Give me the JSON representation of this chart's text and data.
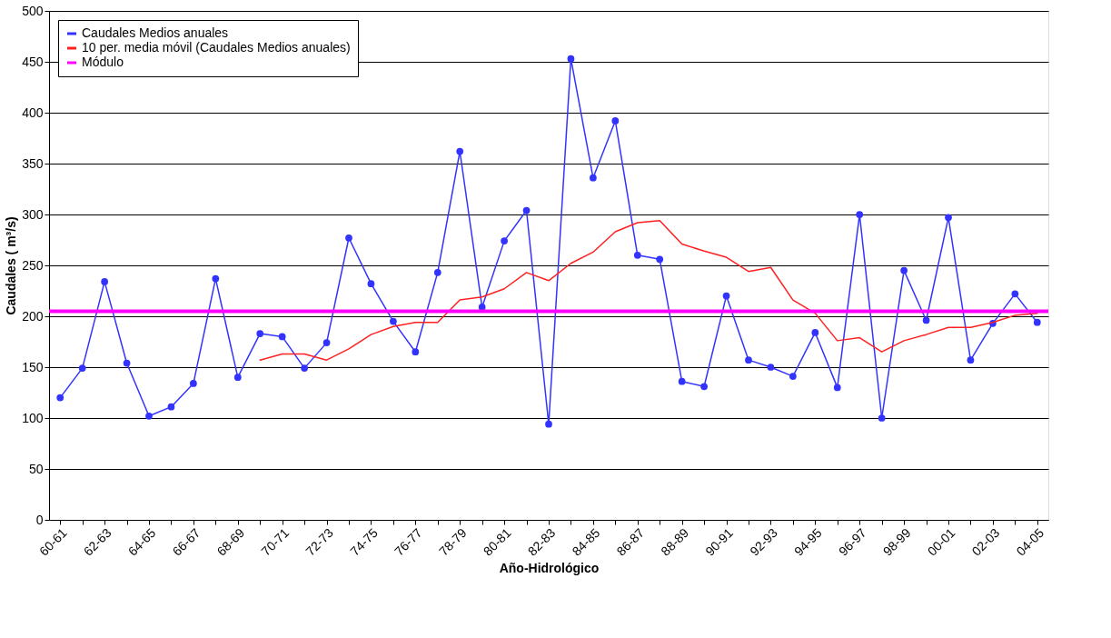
{
  "chart_data": {
    "type": "line",
    "categories": [
      "60-61",
      null,
      "62-63",
      null,
      "64-65",
      null,
      "66-67",
      null,
      "68-69",
      null,
      "70-71",
      null,
      "72-73",
      null,
      "74-75",
      null,
      "76-77",
      null,
      "78-79",
      null,
      "80-81",
      null,
      "82-83",
      null,
      "84-85",
      null,
      "86-87",
      null,
      "88-89",
      null,
      "90-91",
      null,
      "92-93",
      null,
      "94-95",
      null,
      "96-97",
      null,
      "98-99",
      null,
      "00-01",
      null,
      "02-03",
      null,
      "04-05"
    ],
    "series": [
      {
        "name": "Caudales Medios anuales",
        "color": "#3333ff",
        "marker": "circle",
        "values": [
          120,
          149,
          234,
          154,
          102,
          111,
          134,
          237,
          140,
          183,
          180,
          149,
          174,
          277,
          232,
          195,
          165,
          243,
          362,
          209,
          274,
          304,
          94,
          453,
          336,
          392,
          260,
          256,
          136,
          131,
          220,
          157,
          150,
          141,
          184,
          130,
          300,
          100,
          245,
          196,
          297,
          157,
          193,
          222,
          194
        ]
      },
      {
        "name": "10 per. media móvil (Caudales Medios anuales)",
        "color": "#ff2020",
        "marker": "none",
        "values": [
          null,
          null,
          null,
          null,
          null,
          null,
          null,
          null,
          null,
          157,
          163,
          163,
          157,
          168,
          182,
          190,
          194,
          194,
          216,
          219,
          227,
          243,
          235,
          252,
          263,
          283,
          292,
          294,
          271,
          264,
          258,
          244,
          248,
          216,
          203,
          176,
          179,
          165,
          176,
          182,
          189,
          189,
          194,
          201,
          203
        ]
      }
    ],
    "ref_lines": [
      {
        "axis": "y",
        "value": 205,
        "label": "Módulo",
        "color": "#ff00ff"
      }
    ],
    "ylim": [
      0,
      500
    ],
    "yticks": [
      0,
      50,
      100,
      150,
      200,
      250,
      300,
      350,
      400,
      450,
      500
    ],
    "xlabel": "Año-Hidrológico",
    "ylabel": "Caudales ( m³/s)",
    "grid": "y",
    "legend": "top left"
  }
}
